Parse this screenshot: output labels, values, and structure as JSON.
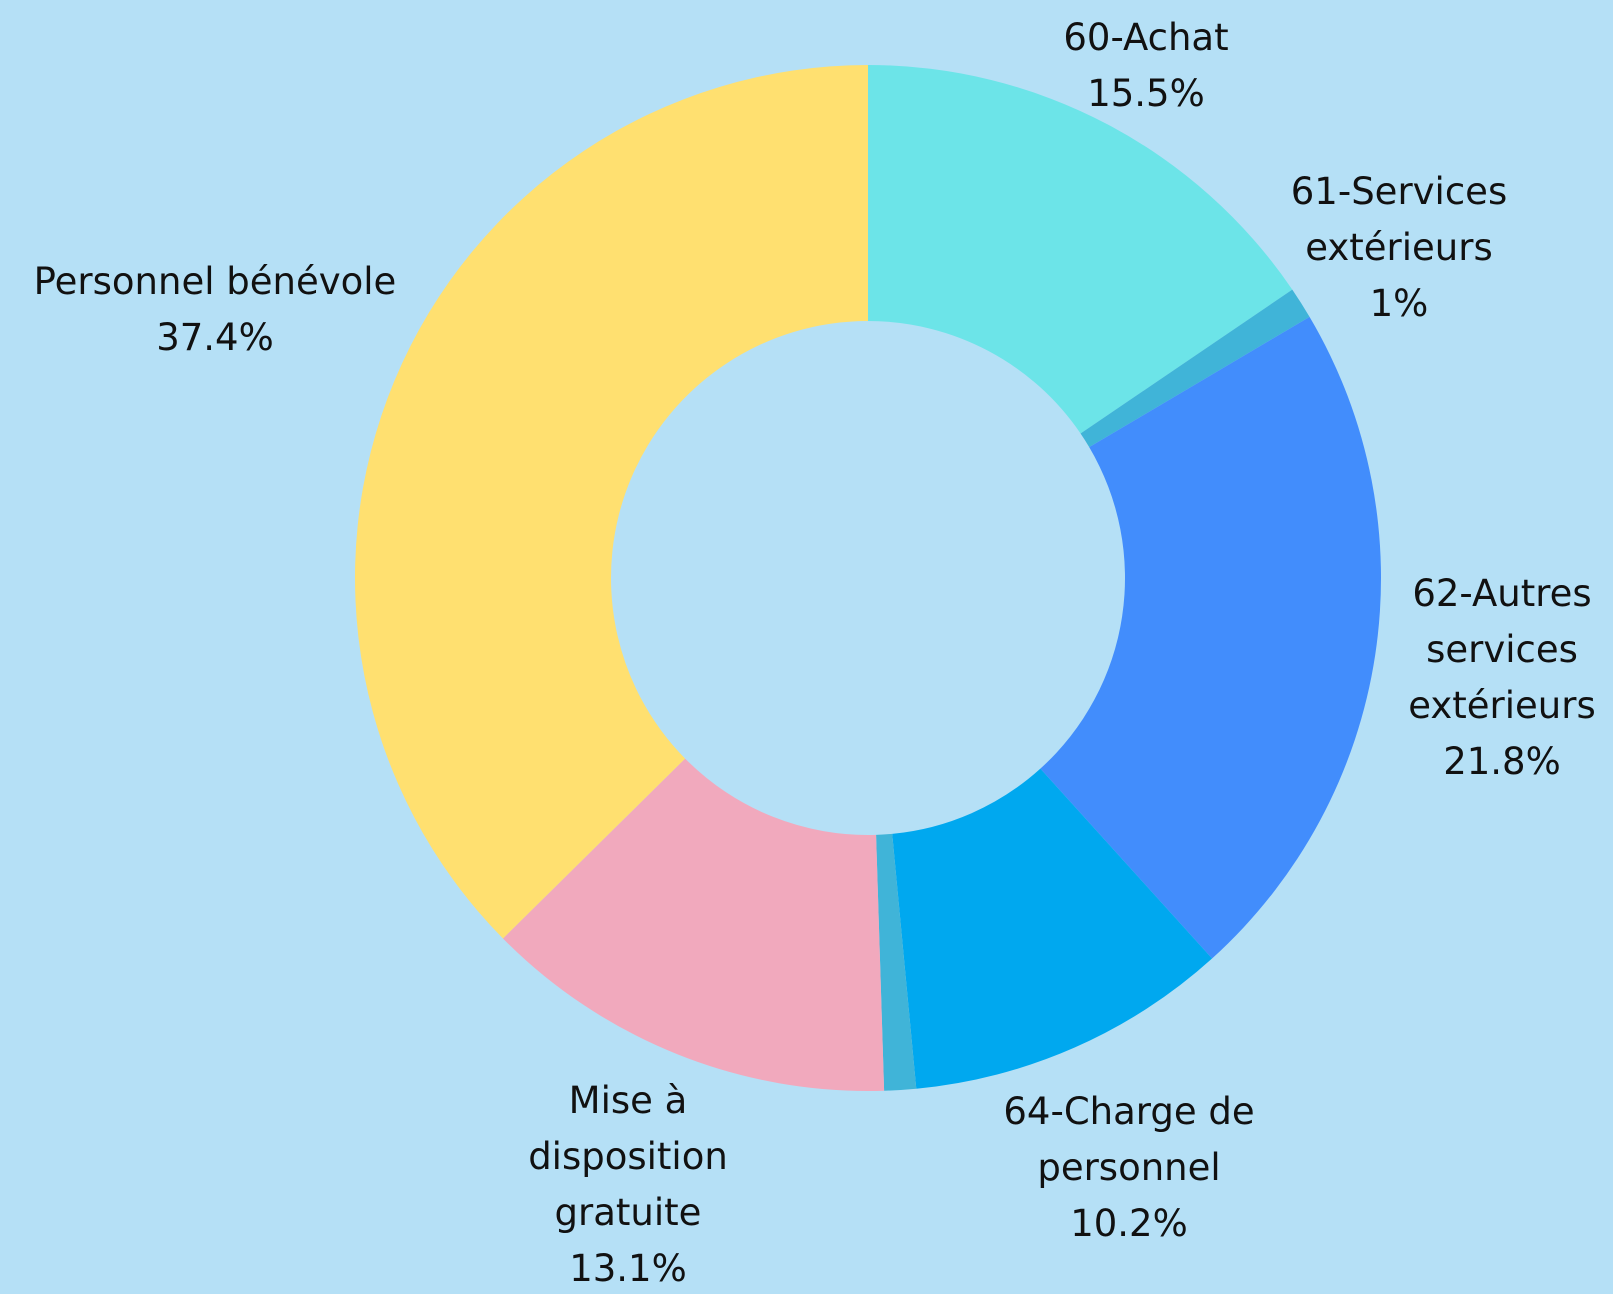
{
  "chart_data": {
    "type": "pie",
    "style": "donut",
    "title": "",
    "categories": [
      "60-Achat",
      "61-Services extérieurs",
      "62-Autres services extérieurs",
      "64-Charge de personnel",
      "",
      "Mise à disposition gratuite",
      "Personnel bénévole"
    ],
    "values": [
      15.5,
      1,
      21.8,
      10.2,
      1,
      13.1,
      37.4
    ],
    "labels": [
      {
        "lines": [
          "60-Achat",
          "15.5%"
        ]
      },
      {
        "lines": [
          "61-Services",
          "extérieurs",
          "1%"
        ]
      },
      {
        "lines": [
          "62-Autres",
          "services",
          "extérieurs",
          "21.8%"
        ]
      },
      {
        "lines": [
          "64-Charge de",
          "personnel",
          "10.2%"
        ]
      },
      {
        "lines": []
      },
      {
        "lines": [
          "Mise à",
          "disposition",
          "gratuite",
          "13.1%"
        ]
      },
      {
        "lines": [
          "Personnel bénévole",
          "37.4%"
        ]
      }
    ],
    "colors": [
      "#6ce4e8",
      "#40b4d8",
      "#428dfc",
      "#00a8ef",
      "#40b4d8",
      "#f1a9bd",
      "#ffe070"
    ],
    "background": "#b5e0f6",
    "start_angle": "12 o'clock",
    "direction": "clockwise",
    "legend": "none"
  }
}
